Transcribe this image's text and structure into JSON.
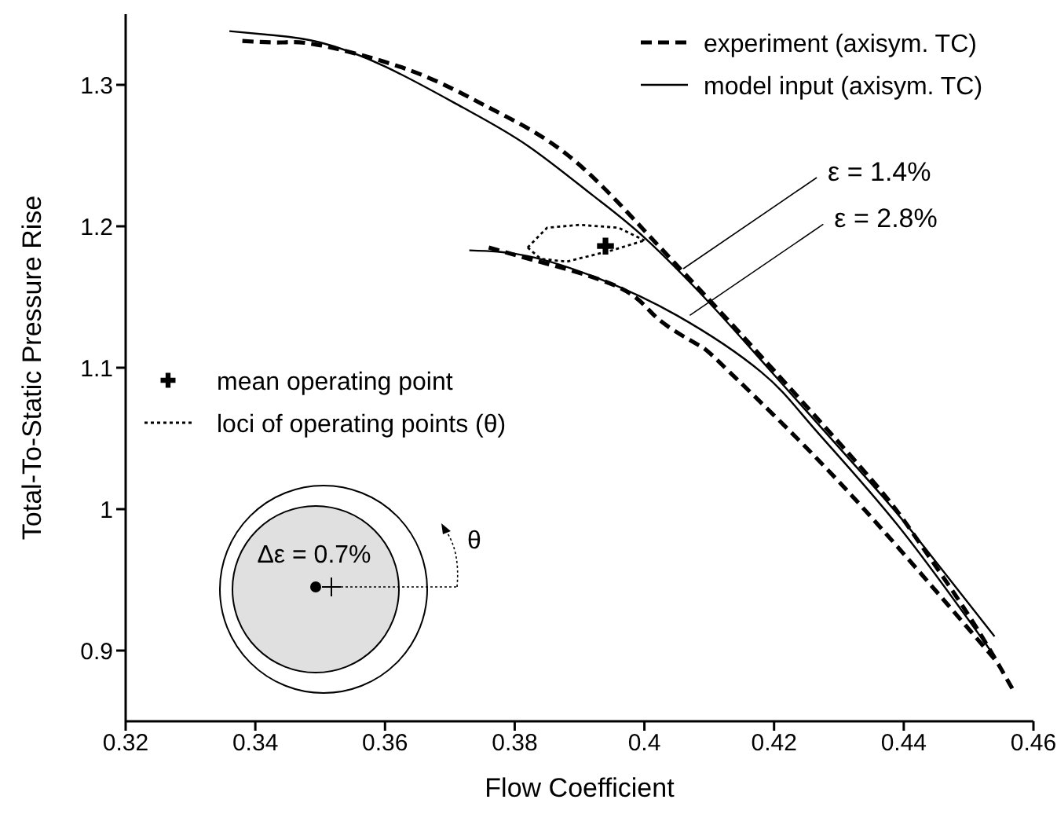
{
  "chart_data": {
    "type": "line",
    "xlabel": "Flow Coefficient",
    "ylabel": "Total-To-Static Pressure Rise",
    "xlim": [
      0.32,
      0.46
    ],
    "xticks": [
      0.32,
      0.34,
      0.36,
      0.38,
      0.4,
      0.42,
      0.44,
      0.46
    ],
    "ylim": [
      0.85,
      1.35
    ],
    "yticks": [
      0.9,
      1,
      1.1,
      1.2,
      1.3
    ],
    "legend": "top right",
    "series": [
      {
        "name": "experiment  (axisym. TC)",
        "color": "#000000",
        "line_style": "dashed",
        "x": [
          0.338,
          0.344,
          0.35,
          0.364,
          0.376,
          0.388,
          0.4,
          0.41,
          0.42,
          0.435,
          0.442,
          0.45,
          0.457
        ],
        "values": [
          1.331,
          1.33,
          1.328,
          1.31,
          1.284,
          1.251,
          1.197,
          1.148,
          1.098,
          1.021,
          0.979,
          0.925,
          0.871
        ]
      },
      {
        "name": "model input (axisym. TC)",
        "color": "#000000",
        "line_style": "solid",
        "x": [
          0.336,
          0.343,
          0.35,
          0.36,
          0.372,
          0.382,
          0.392,
          0.4,
          0.41,
          0.42,
          0.435,
          0.442,
          0.454
        ],
        "values": [
          1.338,
          1.335,
          1.33,
          1.313,
          1.284,
          1.257,
          1.222,
          1.192,
          1.146,
          1.095,
          1.018,
          0.98,
          0.91
        ]
      },
      {
        "color": "#000000",
        "line_style": "dashed",
        "x": [
          0.376,
          0.383,
          0.396,
          0.402,
          0.408,
          0.412,
          0.424,
          0.437,
          0.454
        ],
        "values": [
          1.185,
          1.176,
          1.157,
          1.135,
          1.117,
          1.102,
          1.048,
          0.984,
          0.894
        ]
      },
      {
        "color": "#000000",
        "line_style": "solid",
        "x": [
          0.373,
          0.382,
          0.393,
          0.405,
          0.418,
          0.426,
          0.439,
          0.454
        ],
        "values": [
          1.183,
          1.179,
          1.163,
          1.137,
          1.097,
          1.058,
          0.989,
          0.896
        ]
      },
      {
        "name": "mean operating point",
        "type": "scatter",
        "marker": "cross",
        "color": "#000000",
        "x": [
          0.394
        ],
        "values": [
          1.186
        ]
      },
      {
        "name": "loci of operating points (θ)",
        "color": "#000000",
        "line_style": "dotted",
        "x": [
          0.382,
          0.385,
          0.39,
          0.396,
          0.4
        ],
        "values": [
          1.185,
          1.199,
          1.201,
          1.199,
          1.19
        ]
      },
      {
        "color": "#000000",
        "line_style": "dotted",
        "x": [
          0.382,
          0.384,
          0.388,
          0.395,
          0.4
        ],
        "values": [
          1.185,
          1.177,
          1.175,
          1.183,
          1.19
        ]
      }
    ],
    "annotations": [
      {
        "text": "ε = 1.4%",
        "x": 0.406,
        "y": 1.17
      },
      {
        "text": "ε = 2.8%",
        "x": 0.407,
        "y": 1.137
      },
      "Δε = 0.7%",
      "θ"
    ]
  }
}
